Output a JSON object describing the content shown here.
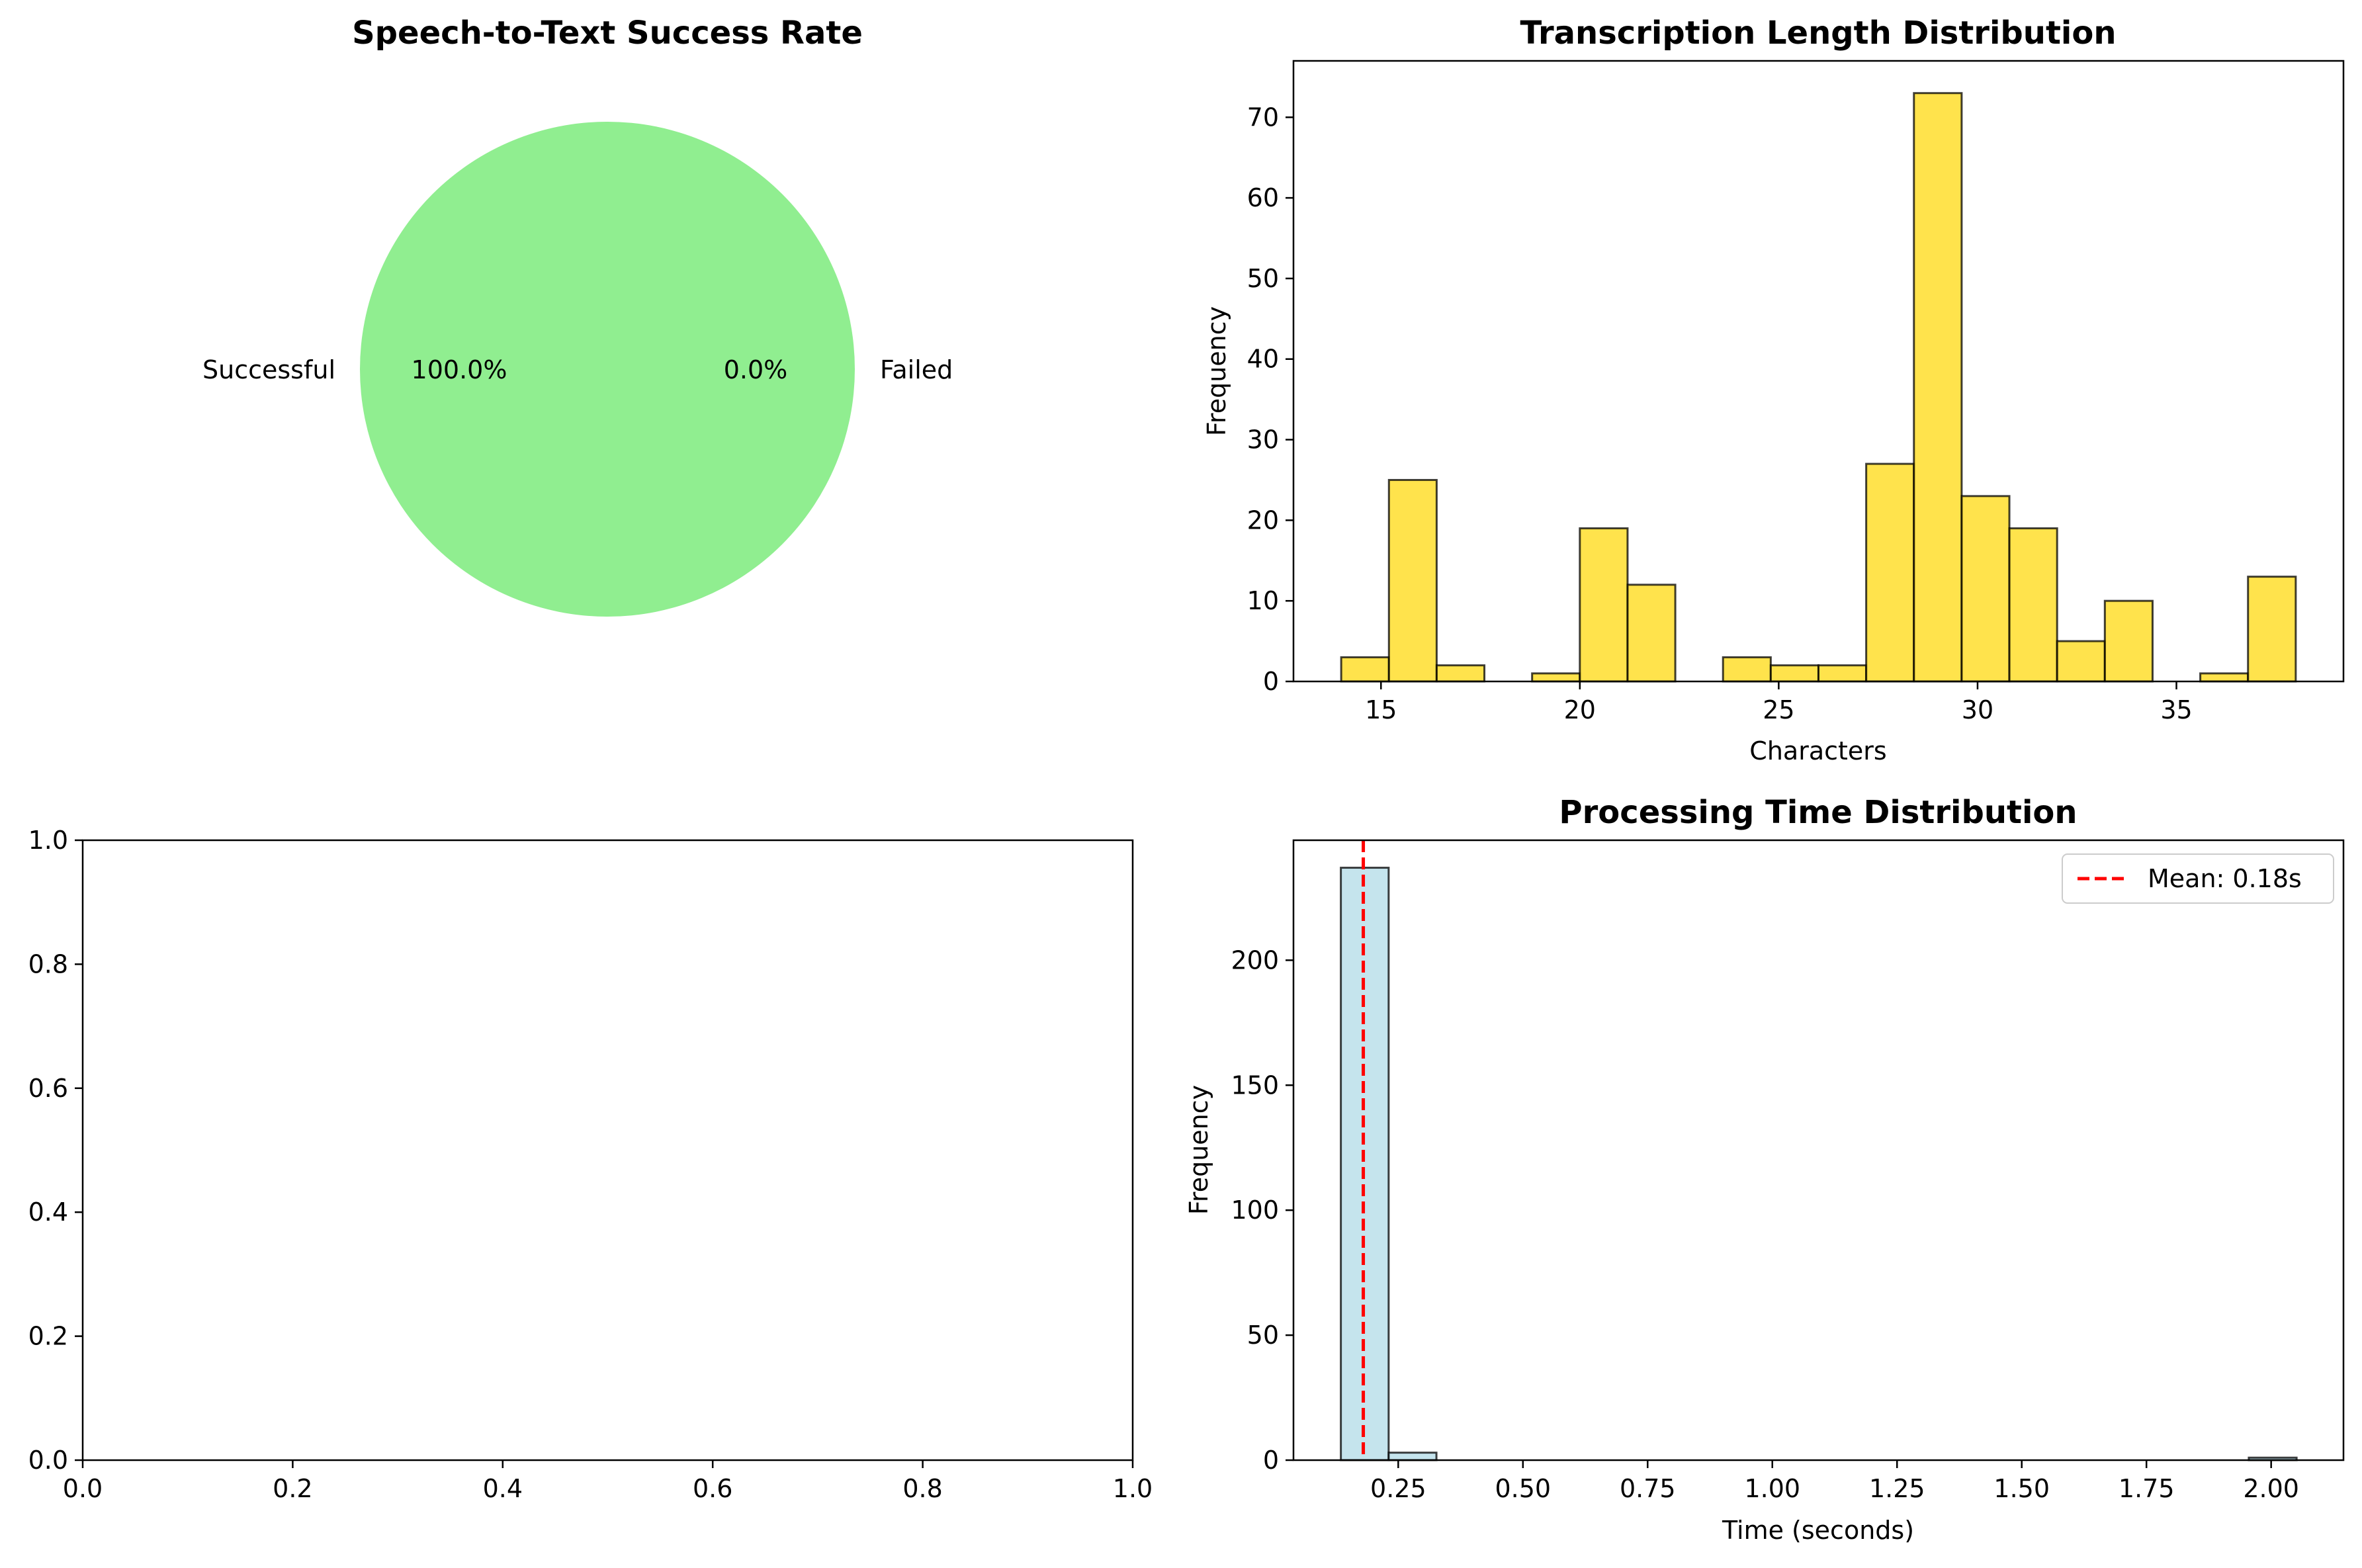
{
  "chart_data": [
    {
      "type": "pie",
      "title": "Speech-to-Text Success Rate",
      "labels": [
        "Successful",
        "Failed"
      ],
      "values": [
        100.0,
        0.0
      ],
      "autopct": [
        "100.0%",
        "0.0%"
      ],
      "colors": [
        "#90ee90",
        "#f08080"
      ]
    },
    {
      "type": "bar",
      "title": "Transcription Length Distribution",
      "xlabel": "Characters",
      "ylabel": "Frequency",
      "xlim": [
        12.8,
        39.2
      ],
      "ylim": [
        0,
        77
      ],
      "xticks": [
        15,
        20,
        25,
        30,
        35
      ],
      "yticks": [
        0,
        10,
        20,
        30,
        40,
        50,
        60,
        70
      ],
      "bin_start": 14,
      "bin_width": 1.2,
      "values": [
        3,
        25,
        2,
        0,
        1,
        19,
        12,
        0,
        3,
        2,
        2,
        27,
        73,
        23,
        19,
        5,
        10,
        0,
        1,
        13
      ],
      "color": "#ffd700",
      "grid": false
    },
    {
      "type": "scatter",
      "title": "",
      "xlabel": "",
      "ylabel": "",
      "xlim": [
        0,
        1
      ],
      "ylim": [
        0,
        1
      ],
      "xticks": [
        "0.0",
        "0.2",
        "0.4",
        "0.6",
        "0.8",
        "1.0"
      ],
      "yticks": [
        "0.0",
        "0.2",
        "0.4",
        "0.6",
        "0.8",
        "1.0"
      ],
      "values": []
    },
    {
      "type": "bar",
      "title": "Processing Time Distribution",
      "xlabel": "Time (seconds)",
      "ylabel": "Frequency",
      "xlim": [
        0.04,
        2.145
      ],
      "ylim": [
        0,
        248
      ],
      "xticks": [
        "0.25",
        "0.50",
        "0.75",
        "1.00",
        "1.25",
        "1.50",
        "1.75",
        "2.00"
      ],
      "yticks": [
        0,
        50,
        100,
        150,
        200
      ],
      "bin_start": 0.135,
      "bin_width": 0.0958,
      "values": [
        237,
        3,
        0,
        0,
        0,
        0,
        0,
        0,
        0,
        0,
        0,
        0,
        0,
        0,
        0,
        0,
        0,
        0,
        0,
        1
      ],
      "color": "#add8e6",
      "mean_line": {
        "value": 0.18,
        "label": "Mean: 0.18s",
        "color": "#ff0000"
      },
      "legend": "top-right",
      "grid": false
    }
  ]
}
